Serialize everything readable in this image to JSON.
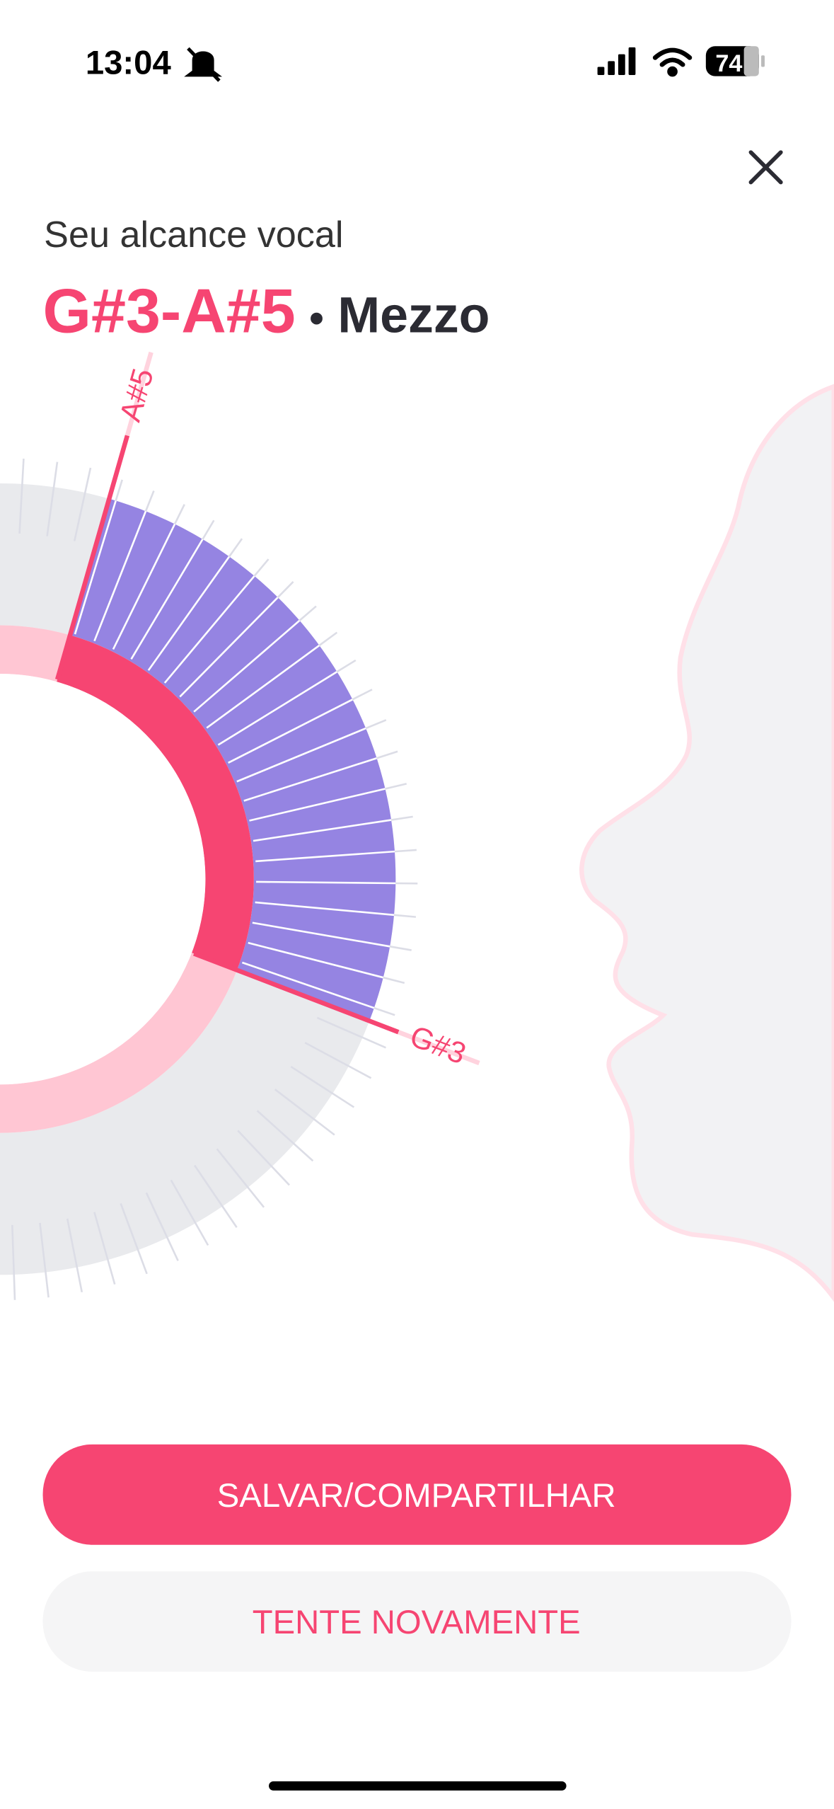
{
  "status_bar": {
    "time": "13:04",
    "battery": "74"
  },
  "header": {
    "subtitle": "Seu alcance vocal",
    "range": "G#3-A#5",
    "separator": "•",
    "voice_type": "Mezzo"
  },
  "range_chart": {
    "high_note": "A#5",
    "low_note": "G#3"
  },
  "buttons": {
    "primary": "SALVAR/COMPARTILHAR",
    "secondary": "TENTE NOVAMENTE"
  }
}
